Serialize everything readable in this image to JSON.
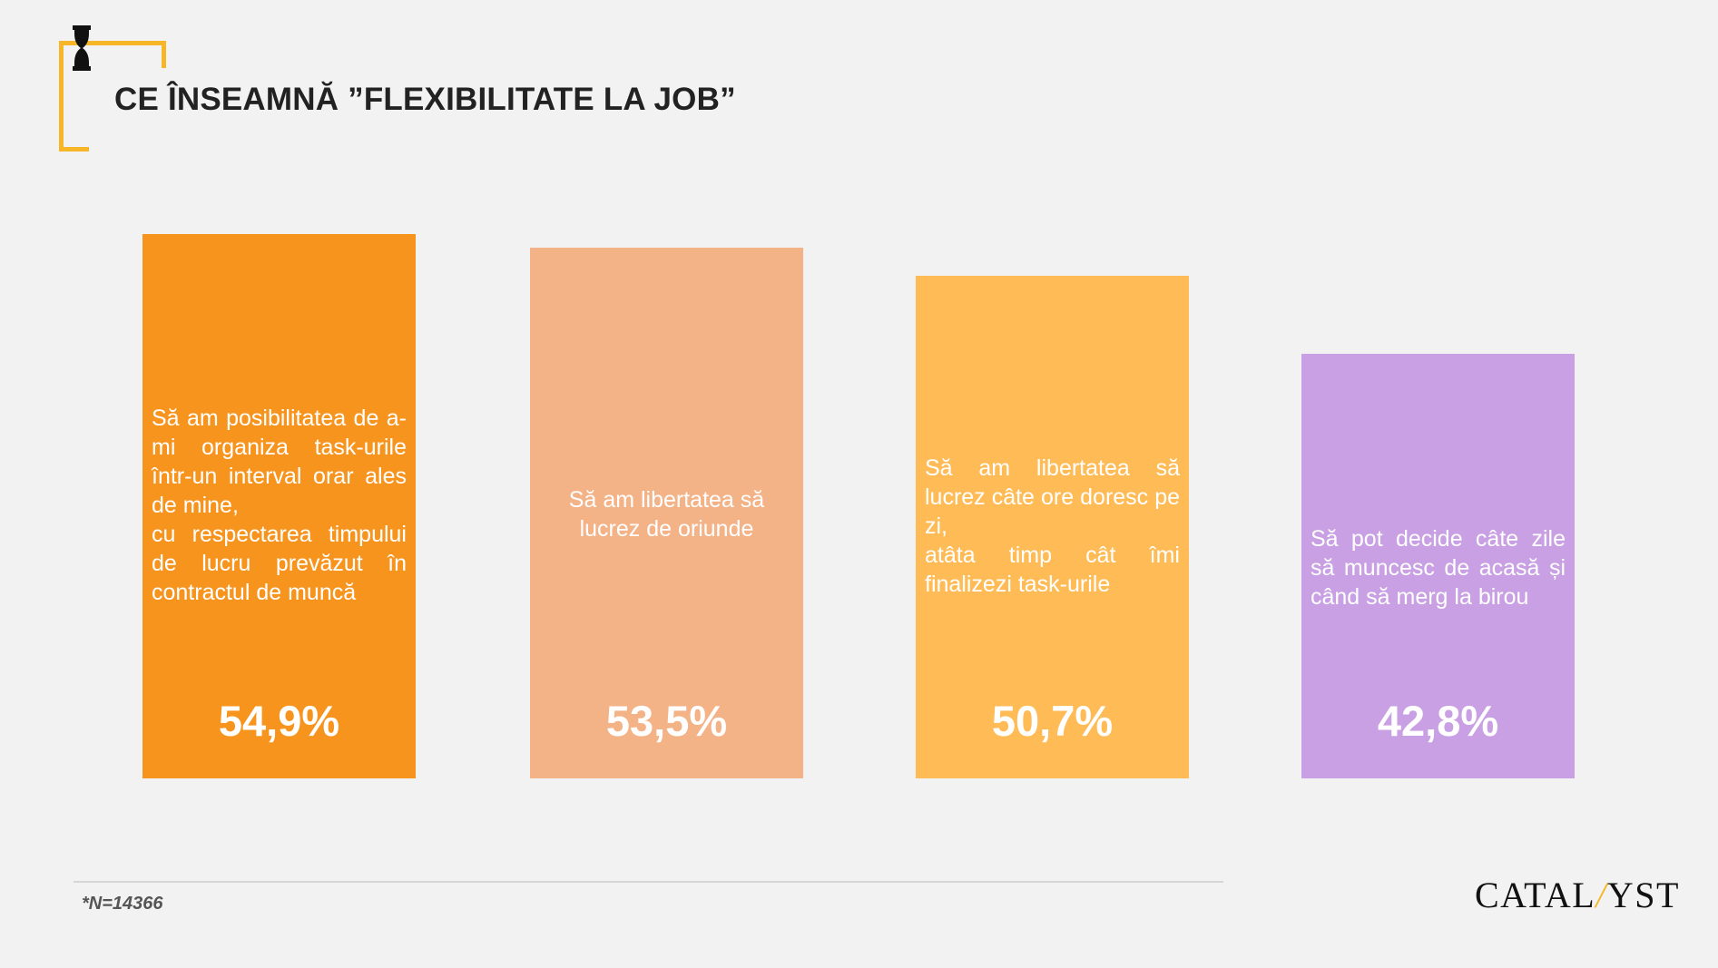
{
  "header": {
    "title": "CE ÎNSEAMNĂ ”FLEXIBILITATE LA JOB”"
  },
  "chart_data": {
    "type": "bar",
    "title": "CE ÎNSEAMNĂ ”FLEXIBILITATE LA JOB”",
    "categories": [
      "Să am posibilitatea de a-mi organiza task-urile într-un interval orar ales de mine,\ncu respectarea timpului de lucru prevăzut în contractul de muncă",
      "Să am libertatea să lucrez de oriunde",
      "Să am libertatea să lucrez câte ore doresc pe zi,\natâta timp cât îmi finalizezi task-urile",
      "Să pot decide câte zile să muncesc de acasă și când să merg la birou"
    ],
    "values": [
      54.9,
      53.5,
      50.7,
      42.8
    ],
    "value_labels": [
      "54,9%",
      "53,5%",
      "50,7%",
      "42,8%"
    ],
    "colors": [
      "#f7941e",
      "#f4b287",
      "#ffbb55",
      "#c8a0e3"
    ],
    "unit": "%",
    "grid": false,
    "legend": "none"
  },
  "footer": {
    "note": "*N=14366",
    "logo_text": "CATALYST"
  }
}
